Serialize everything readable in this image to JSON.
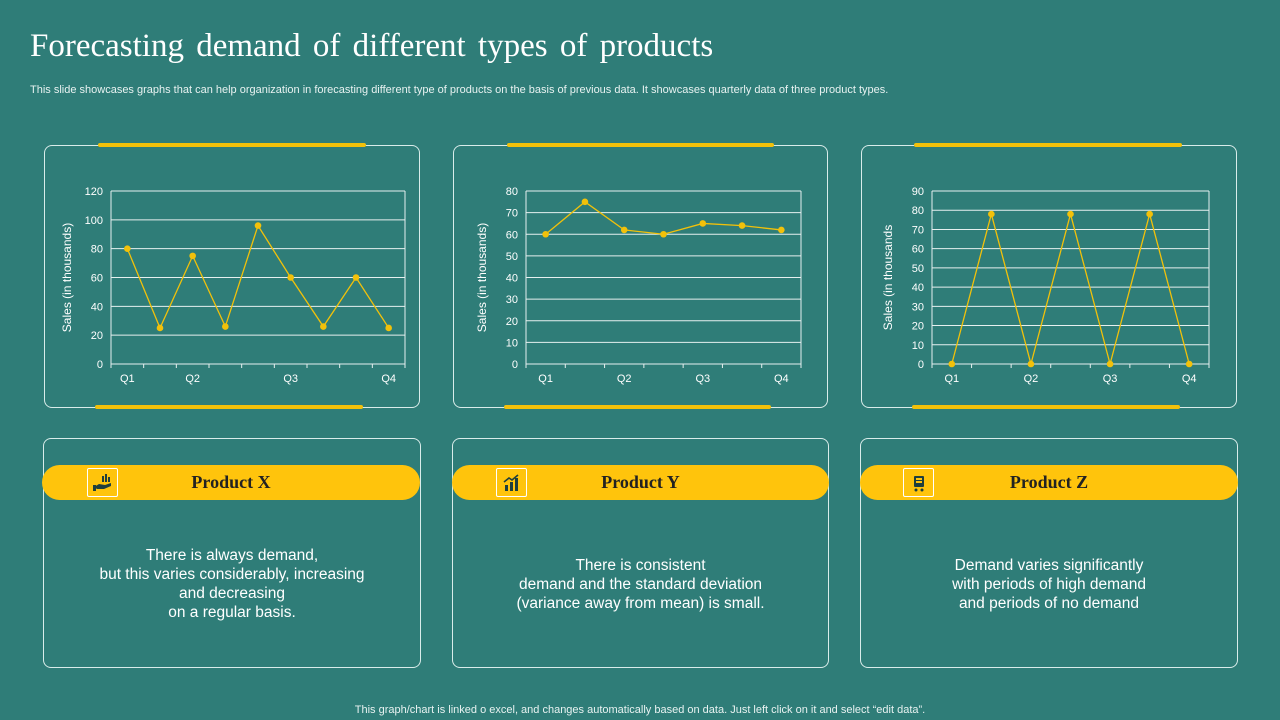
{
  "page": {
    "title": "Forecasting demand of different types of products",
    "subtitle": "This slide showcases graphs that can help organization in forecasting different type  of products on the basis of previous data. It showcases quarterly data of three product types.",
    "footer": "This graph/chart is linked o excel, and changes automatically based on data. Just left click on it and select “edit data”.",
    "accent_color": "#ffc40c",
    "background_color": "#2f7d78"
  },
  "products": [
    {
      "name": "Product X",
      "icon": "hand-money-icon",
      "description": "There is always demand,\nbut this varies considerably, increasing\nand decreasing\non a regular basis."
    },
    {
      "name": "Product Y",
      "icon": "bar-chart-growth-icon",
      "description": "There is consistent\ndemand and the standard deviation\n(variance away from mean) is small."
    },
    {
      "name": "Product Z",
      "icon": "shopping-cart-icon",
      "description": "Demand varies significantly\nwith periods of high demand\nand periods of no demand"
    }
  ],
  "chart_data": [
    {
      "type": "line",
      "title": "",
      "xlabel": "",
      "ylabel": "Sales (in thousands)",
      "ylim": [
        0,
        120
      ],
      "yticks": [
        0,
        20,
        40,
        60,
        80,
        100,
        120
      ],
      "x_tick_labels": [
        "Q1",
        "Q2",
        "Q3",
        "Q4"
      ],
      "x_tick_points": [
        0,
        2,
        5,
        8
      ],
      "grid": true,
      "series": [
        {
          "color": "#f2c10a",
          "values": [
            80,
            25,
            75,
            26,
            96,
            60,
            26,
            60,
            25
          ]
        }
      ]
    },
    {
      "type": "line",
      "title": "",
      "xlabel": "",
      "ylabel": "Sales (in thousands)",
      "ylim": [
        0,
        80
      ],
      "yticks": [
        0,
        10,
        20,
        30,
        40,
        50,
        60,
        70,
        80
      ],
      "x_tick_labels": [
        "Q1",
        "Q2",
        "Q3",
        "Q4"
      ],
      "x_tick_points": [
        0,
        2,
        4,
        6
      ],
      "grid": true,
      "series": [
        {
          "color": "#f2c10a",
          "values": [
            60,
            75,
            62,
            60,
            65,
            64,
            62
          ]
        }
      ]
    },
    {
      "type": "line",
      "title": "",
      "xlabel": "",
      "ylabel": "Sales (in thousands",
      "ylim": [
        0,
        90
      ],
      "yticks": [
        0,
        10,
        20,
        30,
        40,
        50,
        60,
        70,
        80,
        90
      ],
      "x_tick_labels": [
        "Q1",
        "Q2",
        "Q3",
        "Q4"
      ],
      "x_tick_points": [
        0,
        2,
        4,
        6
      ],
      "grid": true,
      "series": [
        {
          "color": "#f2c10a",
          "values": [
            0,
            78,
            0,
            78,
            0,
            78,
            0
          ]
        }
      ]
    }
  ]
}
